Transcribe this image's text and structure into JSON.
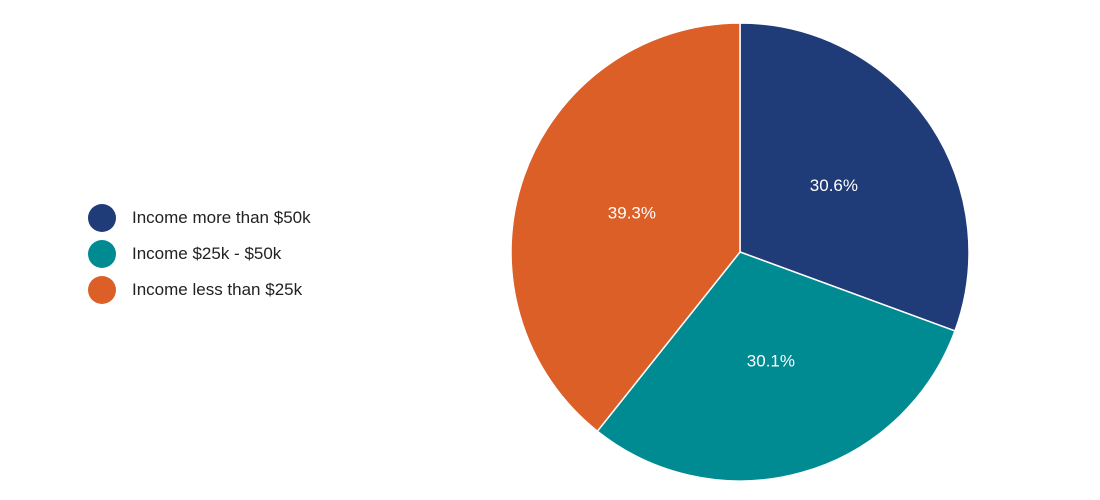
{
  "chart_data": {
    "type": "pie",
    "categories": [
      "Income more than $50k",
      "Income $25k - $50k",
      "Income less than $25k"
    ],
    "values": [
      30.6,
      30.1,
      39.3
    ],
    "labels": [
      "30.6%",
      "30.1%",
      "39.3%"
    ],
    "colors": [
      "#1f3b78",
      "#008a92",
      "#dc5f27"
    ],
    "legend_position": "left",
    "start_angle": "top",
    "direction": "clockwise"
  }
}
